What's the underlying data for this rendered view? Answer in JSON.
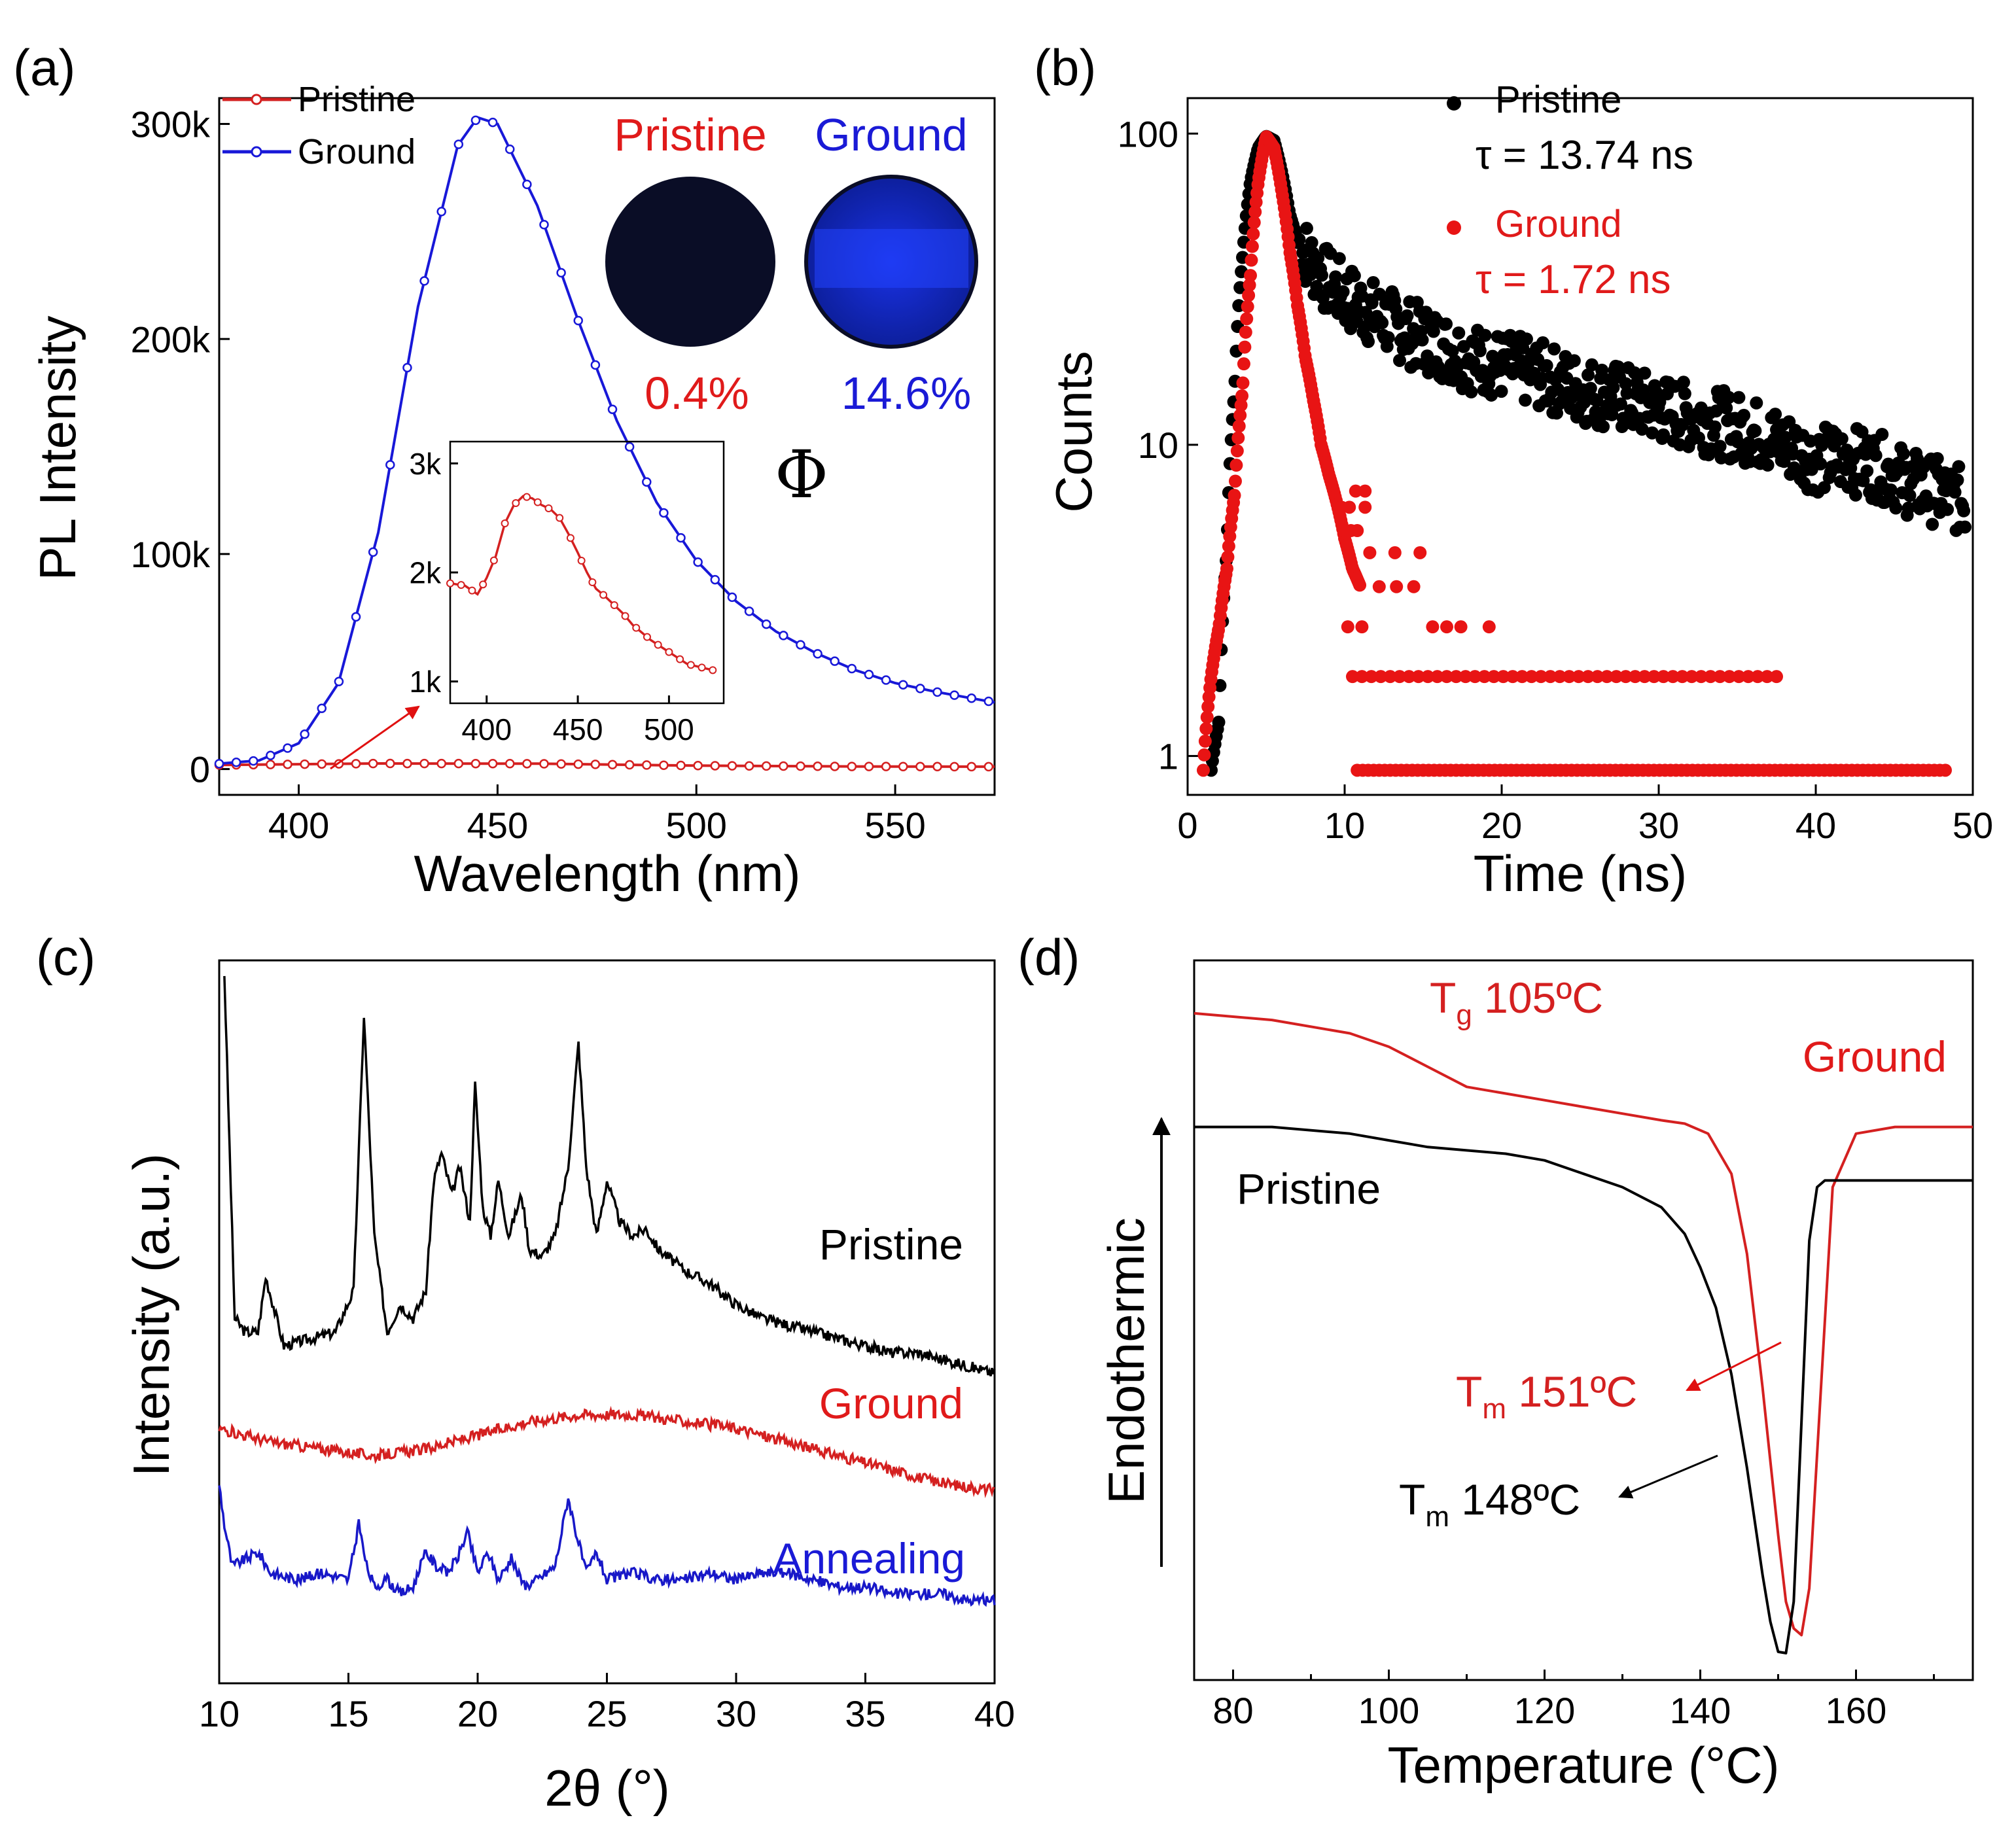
{
  "chart_data": [
    {
      "panel": "(a)",
      "type": "line",
      "xlabel": "Wavelength (nm)",
      "ylabel": "PL Intensity",
      "xlim": [
        380,
        575
      ],
      "ylim": [
        -12000,
        312000
      ],
      "x_ticks": [
        400,
        450,
        500,
        550
      ],
      "y_ticks": [
        0,
        100000,
        200000,
        300000
      ],
      "y_tick_labels": [
        "0",
        "100k",
        "200k",
        "300k"
      ],
      "series": [
        {
          "name": "Pristine",
          "color": "#d42020",
          "x": [
            380,
            420,
            460,
            500,
            540,
            575
          ],
          "y": [
            1900,
            2600,
            2500,
            1600,
            1200,
            1100
          ]
        },
        {
          "name": "Ground",
          "color": "#1818d8",
          "x": [
            380,
            390,
            400,
            410,
            420,
            430,
            440,
            445,
            450,
            460,
            470,
            480,
            490,
            500,
            510,
            520,
            530,
            540,
            550,
            560,
            575
          ],
          "y": [
            2500,
            4000,
            12000,
            40000,
            110000,
            215000,
            290000,
            303000,
            300000,
            262000,
            210000,
            162000,
            124000,
            97000,
            78000,
            64000,
            54000,
            46000,
            40000,
            36000,
            31000
          ]
        }
      ],
      "legend": [
        "Pristine",
        "Ground"
      ],
      "photo_labels": [
        "Pristine",
        "Ground"
      ],
      "quantum_yields": [
        "0.4%",
        "14.6%"
      ],
      "phi_symbol": "Φ",
      "inset": {
        "xlim": [
          380,
          530
        ],
        "ylim": [
          800,
          3200
        ],
        "x_ticks": [
          400,
          450,
          500
        ],
        "y_ticks": [
          1000,
          2000,
          3000
        ],
        "y_tick_labels": [
          "1k",
          "2k",
          "3k"
        ],
        "x": [
          380,
          388,
          395,
          400,
          405,
          410,
          415,
          420,
          425,
          430,
          435,
          440,
          445,
          450,
          455,
          460,
          465,
          470,
          475,
          480,
          490,
          500,
          510,
          520,
          525
        ],
        "y": [
          1900,
          1880,
          1800,
          1950,
          2150,
          2450,
          2620,
          2700,
          2680,
          2620,
          2580,
          2500,
          2350,
          2180,
          2000,
          1850,
          1780,
          1700,
          1620,
          1520,
          1380,
          1270,
          1160,
          1120,
          1100
        ]
      }
    },
    {
      "panel": "(b)",
      "type": "scatter",
      "xlabel": "Time (ns)",
      "ylabel": "Counts",
      "yscale": "log",
      "xlim": [
        0,
        50
      ],
      "ylim": [
        0.75,
        130
      ],
      "x_ticks": [
        0,
        10,
        20,
        30,
        40,
        50
      ],
      "y_ticks": [
        1,
        10,
        100
      ],
      "series": [
        {
          "name": "Pristine",
          "color": "#000000",
          "tau": "τ = 13.74 ns",
          "x": [
            1.5,
            2,
            2.5,
            3,
            3.5,
            4,
            4.5,
            5,
            5.5,
            6,
            6.5,
            7,
            8,
            9,
            10,
            12,
            14,
            16,
            18,
            20,
            22,
            25,
            28,
            30,
            33,
            36,
            38,
            40,
            42,
            44,
            46,
            48,
            49.5
          ],
          "y": [
            0.9,
            1.3,
            4.5,
            15,
            40,
            70,
            90,
            98,
            95,
            75,
            55,
            45,
            38,
            33,
            30,
            26,
            23,
            21,
            19,
            18,
            17,
            15,
            14,
            13,
            12,
            11,
            10,
            9,
            9,
            8.5,
            7.5,
            7,
            6.5
          ]
        },
        {
          "name": "Ground",
          "color": "#e81414",
          "tau": "τ = 1.72 ns",
          "x": [
            1,
            1.5,
            2,
            2.5,
            3,
            3.5,
            4,
            4.5,
            5,
            5.5,
            6,
            6.5,
            7,
            7.5,
            8,
            8.5,
            9,
            9.5,
            10,
            10.5,
            11,
            11.5,
            12,
            13,
            14,
            15,
            17,
            20,
            25,
            30,
            35,
            40,
            45,
            48
          ],
          "y": [
            0.9,
            1.8,
            2.6,
            4,
            7,
            15,
            35,
            70,
            98,
            90,
            65,
            42,
            28,
            19,
            14,
            10,
            8,
            6.5,
            5,
            4,
            3.5,
            2.6,
            1.8,
            1.8,
            3.5,
            4.5,
            2.6,
            1.8,
            1.8,
            1.8,
            1.8,
            0.9,
            0.9,
            0.9
          ]
        }
      ],
      "legend": [
        "Pristine",
        "Ground"
      ]
    },
    {
      "panel": "(c)",
      "type": "line",
      "xlabel": "2θ (°)",
      "ylabel": "Intensity (a.u.)",
      "xlim": [
        10,
        40
      ],
      "ylim": [
        0,
        100
      ],
      "x_ticks": [
        10,
        15,
        20,
        25,
        30,
        35,
        40
      ],
      "series": [
        {
          "name": "Pristine",
          "color": "#000000",
          "x": [
            10.2,
            10.6,
            11,
            11.5,
            11.8,
            12.5,
            13.5,
            14.5,
            15.2,
            15.6,
            16,
            16.5,
            17,
            17.5,
            18,
            18.3,
            18.6,
            19,
            19.3,
            19.7,
            19.9,
            20.2,
            20.5,
            20.8,
            21.2,
            21.7,
            22,
            22.5,
            23,
            23.5,
            23.9,
            24.2,
            24.6,
            25,
            25.5,
            26,
            26.5,
            27,
            28,
            29,
            30,
            31,
            32,
            33,
            34,
            35,
            36,
            37,
            38,
            39,
            40
          ],
          "y": [
            98,
            48,
            46,
            46,
            54,
            44,
            45,
            46,
            52,
            92,
            60,
            46,
            50,
            48,
            52,
            68,
            72,
            66,
            70,
            62,
            82,
            64,
            60,
            68,
            60,
            66,
            58,
            57,
            60,
            70,
            88,
            70,
            60,
            68,
            62,
            60,
            61,
            58,
            55,
            53,
            50,
            48,
            47,
            46,
            45,
            44,
            43,
            43,
            42,
            41,
            40
          ]
        },
        {
          "name": "Ground",
          "color": "#d42020",
          "x": [
            10,
            12,
            14,
            16,
            18,
            20,
            22,
            24,
            26,
            28,
            30,
            32,
            34,
            36,
            38,
            40
          ],
          "y": [
            32,
            30,
            29,
            28,
            29,
            31,
            33,
            34,
            34,
            33,
            32,
            30,
            28,
            26,
            24,
            23
          ]
        },
        {
          "name": "Annealing",
          "color": "#1818c8",
          "x": [
            10,
            10.2,
            10.5,
            11,
            11.5,
            12,
            13,
            14,
            15,
            15.4,
            15.7,
            16,
            16.5,
            17,
            17.5,
            18,
            18.4,
            18.8,
            19.2,
            19.6,
            20,
            20.4,
            20.8,
            21.3,
            21.8,
            22.3,
            23,
            23.5,
            23.8,
            24.2,
            24.6,
            25,
            26,
            27,
            28,
            29,
            30,
            31,
            32,
            33,
            34,
            35,
            36,
            37,
            38,
            39,
            40
          ],
          "y": [
            24,
            18,
            12,
            13,
            14,
            11,
            10,
            11,
            10,
            18,
            12,
            9,
            10,
            8,
            9,
            14,
            12,
            11,
            13,
            17,
            11,
            14,
            10,
            13,
            9,
            10,
            12,
            22,
            17,
            11,
            14,
            10,
            11,
            10,
            10,
            11,
            10,
            11,
            11,
            10,
            9,
            9,
            8,
            8,
            8,
            7,
            7
          ]
        }
      ],
      "legend": [
        "Pristine",
        "Ground",
        "Annealing"
      ]
    },
    {
      "panel": "(d)",
      "type": "line",
      "xlabel": "Temperature (°C)",
      "ylabel": "Endothermic",
      "xlim": [
        75,
        175
      ],
      "ylim": [
        0,
        100
      ],
      "x_ticks": [
        80,
        100,
        120,
        140,
        160
      ],
      "series": [
        {
          "name": "Ground",
          "color": "#d42020",
          "x": [
            75,
            85,
            95,
            100,
            105,
            110,
            115,
            120,
            125,
            130,
            135,
            138,
            141,
            144,
            146,
            148,
            150,
            151,
            152,
            153,
            154,
            155,
            157,
            160,
            165,
            175
          ],
          "y": [
            96,
            95,
            93,
            91,
            88,
            85,
            84,
            83,
            82,
            81,
            80,
            79.5,
            78,
            72,
            60,
            40,
            18,
            8,
            4,
            3,
            10,
            30,
            70,
            78,
            79,
            79
          ]
        },
        {
          "name": "Pristine",
          "color": "#000000",
          "x": [
            75,
            85,
            95,
            100,
            105,
            110,
            115,
            120,
            125,
            130,
            135,
            138,
            140,
            142,
            144,
            146,
            147,
            148,
            149,
            150,
            151,
            152,
            153,
            154,
            155,
            156,
            160,
            175
          ],
          "y": [
            79,
            79,
            78,
            77,
            76,
            75.5,
            75,
            74,
            72,
            70,
            67,
            63,
            58,
            52,
            42,
            28,
            20,
            12,
            5,
            0.5,
            0.3,
            8,
            35,
            62,
            70,
            71,
            71,
            71
          ]
        }
      ],
      "legend": [
        "Ground",
        "Pristine"
      ],
      "annotations": [
        {
          "sym": "T",
          "sub": "g",
          "rest": " 105ºC",
          "color": "#d42020"
        },
        {
          "sym": "T",
          "sub": "m",
          "rest": " 151ºC",
          "color": "#d42020"
        },
        {
          "sym": "T",
          "sub": "m",
          "rest": " 148ºC",
          "color": "#000000"
        }
      ]
    }
  ]
}
